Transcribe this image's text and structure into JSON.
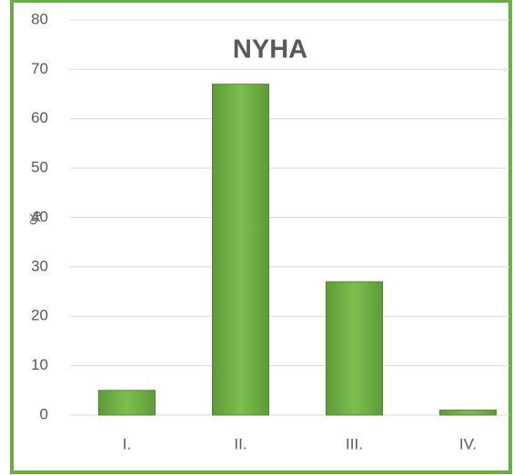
{
  "chart_data": {
    "type": "bar",
    "title": "NYHA",
    "y_label": "%",
    "categories": [
      "I.",
      "II.",
      "III.",
      "IV."
    ],
    "values": [
      5,
      67,
      27,
      1
    ],
    "color": "#70ad47",
    "ylim": [
      0,
      80
    ],
    "yticks": [
      0,
      10,
      20,
      30,
      40,
      50,
      60,
      70,
      80
    ],
    "grid": true
  }
}
